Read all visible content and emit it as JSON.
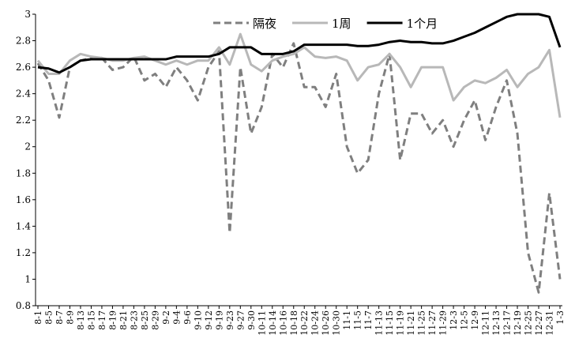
{
  "chart_data": {
    "type": "line",
    "categories": [
      "8-1",
      "8-5",
      "8-7",
      "8-9",
      "8-13",
      "8-15",
      "8-17",
      "8-19",
      "8-21",
      "8-23",
      "8-25",
      "8-29",
      "9-2",
      "9-4",
      "9-6",
      "9-10",
      "9-12",
      "9-19",
      "9-23",
      "9-27",
      "9-30",
      "10-11",
      "10-14",
      "10-16",
      "10-18",
      "10-22",
      "10-24",
      "10-26",
      "10-30",
      "11-1",
      "11-5",
      "11-7",
      "11-13",
      "11-15",
      "11-19",
      "11-21",
      "11-25",
      "11-27",
      "11-29",
      "12-3",
      "12-5",
      "12-9",
      "12-11",
      "12-13",
      "12-17",
      "12-19",
      "12-25",
      "12-27",
      "12-31",
      "1-3"
    ],
    "series": [
      {
        "name": "隔夜",
        "color": "#7f7f7f",
        "dash": true,
        "width": 3,
        "values": [
          2.63,
          2.5,
          2.22,
          2.6,
          2.65,
          2.67,
          2.67,
          2.58,
          2.6,
          2.68,
          2.5,
          2.55,
          2.45,
          2.6,
          2.5,
          2.35,
          2.6,
          2.72,
          1.35,
          2.6,
          2.1,
          2.3,
          2.7,
          2.6,
          2.78,
          2.45,
          2.45,
          2.3,
          2.55,
          2.0,
          1.8,
          1.9,
          2.4,
          2.7,
          1.9,
          2.25,
          2.25,
          2.1,
          2.2,
          2.0,
          2.2,
          2.35,
          2.05,
          2.3,
          2.5,
          2.1,
          1.2,
          0.9,
          1.65,
          1.0
        ]
      },
      {
        "name": "1周",
        "color": "#b8b8b8",
        "dash": false,
        "width": 3,
        "values": [
          2.65,
          2.55,
          2.55,
          2.65,
          2.7,
          2.68,
          2.67,
          2.65,
          2.65,
          2.67,
          2.68,
          2.65,
          2.62,
          2.65,
          2.62,
          2.65,
          2.65,
          2.75,
          2.62,
          2.85,
          2.62,
          2.57,
          2.65,
          2.68,
          2.7,
          2.75,
          2.68,
          2.67,
          2.68,
          2.65,
          2.5,
          2.6,
          2.62,
          2.7,
          2.6,
          2.45,
          2.6,
          2.6,
          2.6,
          2.35,
          2.45,
          2.5,
          2.48,
          2.52,
          2.58,
          2.45,
          2.55,
          2.6,
          2.73,
          2.22
        ]
      },
      {
        "name": "1个月",
        "color": "#000000",
        "dash": false,
        "width": 3,
        "values": [
          2.6,
          2.59,
          2.56,
          2.6,
          2.65,
          2.66,
          2.66,
          2.66,
          2.66,
          2.66,
          2.66,
          2.66,
          2.66,
          2.68,
          2.68,
          2.68,
          2.68,
          2.7,
          2.75,
          2.75,
          2.75,
          2.7,
          2.7,
          2.7,
          2.72,
          2.77,
          2.77,
          2.77,
          2.77,
          2.77,
          2.76,
          2.76,
          2.77,
          2.79,
          2.8,
          2.79,
          2.79,
          2.78,
          2.78,
          2.8,
          2.83,
          2.86,
          2.9,
          2.94,
          2.98,
          3.0,
          3.0,
          3.0,
          2.98,
          2.75
        ]
      }
    ],
    "ylim": [
      0.8,
      3
    ],
    "yticks": [
      0.8,
      1,
      1.2,
      1.4,
      1.6,
      1.8,
      2,
      2.2,
      2.4,
      2.6,
      2.8,
      3
    ],
    "legend": "top",
    "grid": false
  }
}
